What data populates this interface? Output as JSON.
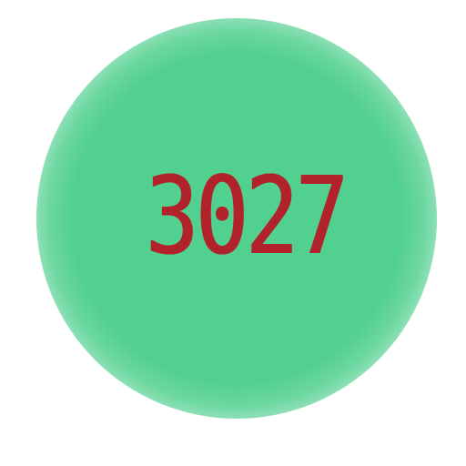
{
  "label": {
    "text": "3027",
    "text_color": "#b2222a"
  },
  "background": {
    "circle_color": "#52d08f",
    "page_color": "#ffffff"
  }
}
